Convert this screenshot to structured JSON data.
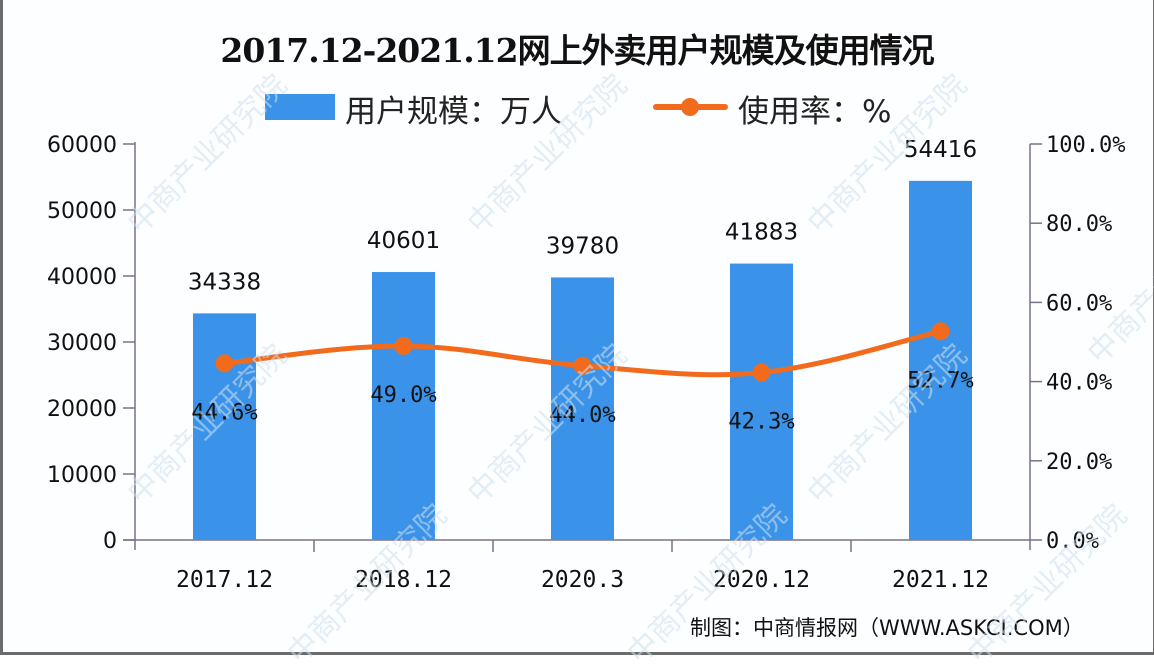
{
  "chart_data": {
    "type": "bar+line",
    "title": "2017.12-2021.12网上外卖用户规模及使用情况",
    "categories": [
      "2017.12",
      "2018.12",
      "2020.3",
      "2020.12",
      "2021.12"
    ],
    "series": [
      {
        "name": "用户规模：万人",
        "type": "bar",
        "axis": "left",
        "color": "#3a93e8",
        "values": [
          34338,
          40601,
          39780,
          41883,
          54416
        ]
      },
      {
        "name": "使用率：%",
        "type": "line",
        "axis": "right",
        "color": "#f26b1d",
        "values": [
          44.6,
          49.0,
          44.0,
          42.3,
          52.7
        ]
      }
    ],
    "left_axis": {
      "ylim": [
        0,
        60000
      ],
      "ticks": [
        "0",
        "10000",
        "20000",
        "30000",
        "40000",
        "50000",
        "60000"
      ]
    },
    "right_axis": {
      "ylim": [
        0,
        100
      ],
      "ticks": [
        "0.0%",
        "20.0%",
        "40.0%",
        "60.0%",
        "80.0%",
        "100.0%"
      ]
    },
    "bar_labels": [
      "34338",
      "40601",
      "39780",
      "41883",
      "54416"
    ],
    "line_labels": [
      "44.6%",
      "49.0%",
      "44.0%",
      "42.3%",
      "52.7%"
    ],
    "legend_position": "top",
    "grid": false
  },
  "title": "2017.12-2021.12网上外卖用户规模及使用情况",
  "legend": {
    "bar_label": "用户规模：万人",
    "line_label": "使用率：%"
  },
  "source": "制图：中商情报网（WWW.ASKCI.COM）",
  "watermark": "中商产业研究院"
}
